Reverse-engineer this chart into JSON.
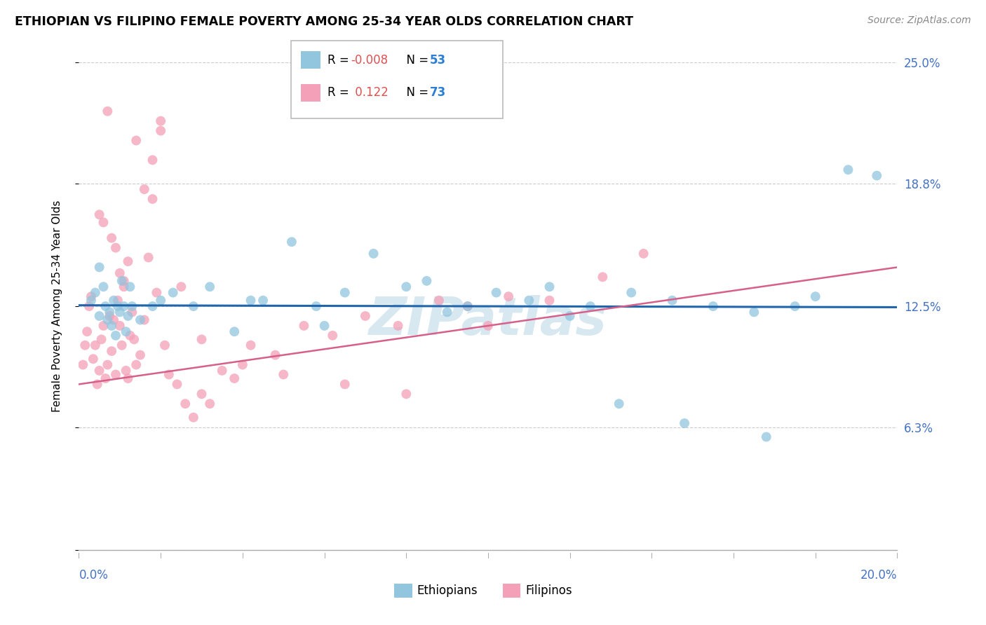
{
  "title": "ETHIOPIAN VS FILIPINO FEMALE POVERTY AMONG 25-34 YEAR OLDS CORRELATION CHART",
  "source": "Source: ZipAtlas.com",
  "ylabel": "Female Poverty Among 25-34 Year Olds",
  "xlim": [
    0.0,
    20.0
  ],
  "ylim": [
    0.0,
    25.0
  ],
  "yticks": [
    0.0,
    6.3,
    12.5,
    18.8,
    25.0
  ],
  "ytick_labels": [
    "",
    "6.3%",
    "12.5%",
    "18.8%",
    "25.0%"
  ],
  "ethiopian_color": "#92c5de",
  "filipino_color": "#f4a0b8",
  "trend_eth_color": "#2166ac",
  "trend_fil_color": "#d6608a",
  "r1_color": "#e05050",
  "n1_color": "#2a7fd4",
  "r2_color": "#e05050",
  "n2_color": "#2a7fd4",
  "watermark_color": "#d8e8f0",
  "eth_x": [
    0.3,
    0.4,
    0.5,
    0.5,
    0.6,
    0.65,
    0.7,
    0.75,
    0.8,
    0.85,
    0.9,
    0.95,
    1.0,
    1.05,
    1.1,
    1.15,
    1.2,
    1.25,
    1.3,
    1.5,
    1.8,
    2.0,
    2.3,
    2.8,
    3.2,
    3.8,
    4.5,
    5.2,
    5.8,
    6.5,
    7.2,
    8.0,
    9.5,
    10.2,
    11.0,
    12.5,
    13.5,
    14.5,
    15.5,
    16.5,
    17.5,
    18.0,
    18.8,
    4.2,
    6.0,
    8.5,
    9.0,
    11.5,
    12.0,
    13.2,
    14.8,
    16.8,
    19.5
  ],
  "eth_y": [
    12.8,
    13.2,
    12.0,
    14.5,
    13.5,
    12.5,
    11.8,
    12.2,
    11.5,
    12.8,
    11.0,
    12.5,
    12.2,
    13.8,
    12.5,
    11.2,
    12.0,
    13.5,
    12.5,
    11.8,
    12.5,
    12.8,
    13.2,
    12.5,
    13.5,
    11.2,
    12.8,
    15.8,
    12.5,
    13.2,
    15.2,
    13.5,
    12.5,
    13.2,
    12.8,
    12.5,
    13.2,
    12.8,
    12.5,
    12.2,
    12.5,
    13.0,
    19.5,
    12.8,
    11.5,
    13.8,
    12.2,
    13.5,
    12.0,
    7.5,
    6.5,
    5.8,
    19.2
  ],
  "fil_x": [
    0.1,
    0.15,
    0.2,
    0.25,
    0.3,
    0.35,
    0.4,
    0.45,
    0.5,
    0.55,
    0.6,
    0.65,
    0.7,
    0.75,
    0.8,
    0.85,
    0.9,
    0.95,
    1.0,
    1.05,
    1.1,
    1.15,
    1.2,
    1.25,
    1.3,
    1.35,
    1.4,
    1.5,
    1.6,
    1.7,
    1.8,
    1.9,
    2.0,
    2.1,
    2.2,
    2.4,
    2.6,
    2.8,
    3.0,
    3.2,
    3.5,
    3.8,
    4.2,
    4.8,
    5.5,
    6.2,
    7.0,
    7.8,
    8.8,
    9.5,
    10.5,
    11.5,
    12.8,
    13.8,
    0.5,
    0.6,
    0.7,
    0.8,
    0.9,
    1.0,
    1.1,
    1.2,
    1.4,
    1.6,
    1.8,
    2.0,
    2.5,
    3.0,
    4.0,
    5.0,
    6.5,
    8.0,
    10.0
  ],
  "fil_y": [
    9.5,
    10.5,
    11.2,
    12.5,
    13.0,
    9.8,
    10.5,
    8.5,
    9.2,
    10.8,
    11.5,
    8.8,
    9.5,
    12.0,
    10.2,
    11.8,
    9.0,
    12.8,
    11.5,
    10.5,
    13.5,
    9.2,
    8.8,
    11.0,
    12.2,
    10.8,
    9.5,
    10.0,
    11.8,
    15.0,
    18.0,
    13.2,
    22.0,
    10.5,
    9.0,
    8.5,
    7.5,
    6.8,
    8.0,
    7.5,
    9.2,
    8.8,
    10.5,
    10.0,
    11.5,
    11.0,
    12.0,
    11.5,
    12.8,
    12.5,
    13.0,
    12.8,
    14.0,
    15.2,
    17.2,
    16.8,
    22.5,
    16.0,
    15.5,
    14.2,
    13.8,
    14.8,
    21.0,
    18.5,
    20.0,
    21.5,
    13.5,
    10.8,
    9.5,
    9.0,
    8.5,
    8.0,
    11.5
  ],
  "eth_trend_y0": 12.55,
  "eth_trend_y1": 12.45,
  "fil_trend_y0": 8.5,
  "fil_trend_y1": 14.5
}
